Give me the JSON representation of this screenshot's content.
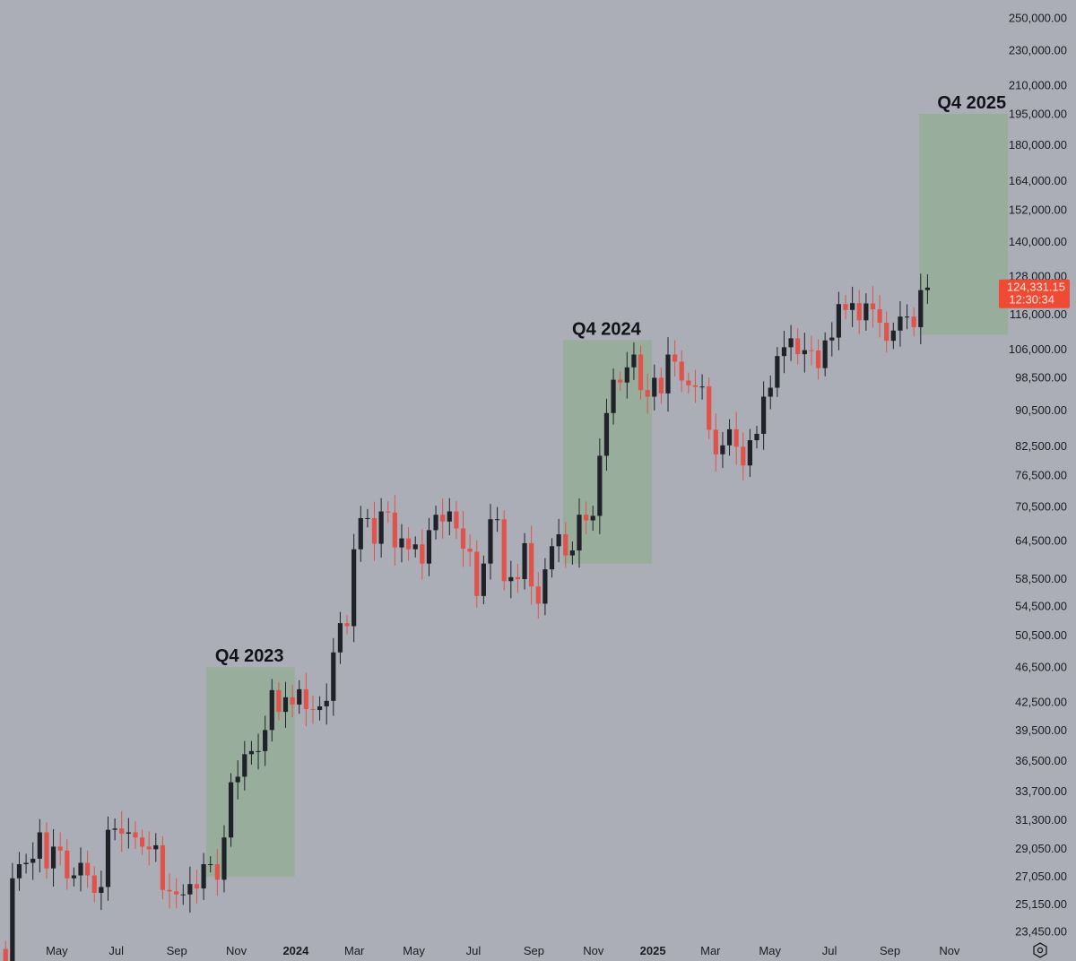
{
  "chart_data": {
    "type": "candlestick",
    "title": "",
    "scale": "log",
    "interval": "weekly",
    "start_week": "2023-03-06",
    "ylim": [
      23450,
      250000
    ],
    "y_ticks": [
      250000,
      230000,
      210000,
      195000,
      180000,
      164000,
      152000,
      140000,
      128000,
      116000,
      106000,
      98500,
      90500,
      82500,
      76500,
      70500,
      64500,
      58500,
      54500,
      50500,
      46500,
      42500,
      39500,
      36500,
      33700,
      31300,
      29050,
      27050,
      25150,
      23450
    ],
    "y_tick_labels": [
      "250,000.00",
      "230,000.00",
      "210,000.00",
      "195,000.00",
      "180,000.00",
      "164,000.00",
      "152,000.00",
      "140,000.00",
      "128,000.00",
      "116,000.00",
      "106,000.00",
      "98,500.00",
      "90,500.00",
      "82,500.00",
      "76,500.00",
      "70,500.00",
      "64,500.00",
      "58,500.00",
      "54,500.00",
      "50,500.00",
      "46,500.00",
      "42,500.00",
      "39,500.00",
      "36,500.00",
      "33,700.00",
      "31,300.00",
      "29,050.00",
      "27,050.00",
      "25,150.00",
      "23,450.00"
    ],
    "x_ticks": [
      {
        "date": "2023-03-01",
        "label": "Mar",
        "bold": false
      },
      {
        "date": "2023-05-01",
        "label": "May",
        "bold": false
      },
      {
        "date": "2023-07-01",
        "label": "Jul",
        "bold": false
      },
      {
        "date": "2023-09-01",
        "label": "Sep",
        "bold": false
      },
      {
        "date": "2023-11-01",
        "label": "Nov",
        "bold": false
      },
      {
        "date": "2024-01-01",
        "label": "2024",
        "bold": true
      },
      {
        "date": "2024-03-01",
        "label": "Mar",
        "bold": false
      },
      {
        "date": "2024-05-01",
        "label": "May",
        "bold": false
      },
      {
        "date": "2024-07-01",
        "label": "Jul",
        "bold": false
      },
      {
        "date": "2024-09-01",
        "label": "Sep",
        "bold": false
      },
      {
        "date": "2024-11-01",
        "label": "Nov",
        "bold": false
      },
      {
        "date": "2025-01-01",
        "label": "2025",
        "bold": true
      },
      {
        "date": "2025-03-01",
        "label": "Mar",
        "bold": false
      },
      {
        "date": "2025-05-01",
        "label": "May",
        "bold": false
      },
      {
        "date": "2025-07-01",
        "label": "Jul",
        "bold": false
      },
      {
        "date": "2025-09-01",
        "label": "Sep",
        "bold": false
      },
      {
        "date": "2025-11-01",
        "label": "Nov",
        "bold": false
      }
    ],
    "first_open": 22400,
    "closes": [
      20600,
      26900,
      27900,
      28000,
      28300,
      30300,
      27600,
      29200,
      28900,
      26900,
      27100,
      28000,
      27100,
      25900,
      26300,
      30500,
      30600,
      30200,
      30300,
      29900,
      29200,
      29000,
      29300,
      26100,
      26000,
      25800,
      25800,
      26500,
      26200,
      27900,
      27900,
      26800,
      29900,
      34500,
      35000,
      37100,
      37400,
      37400,
      39500,
      43800,
      41400,
      43000,
      42200,
      43900,
      41700,
      41600,
      42000,
      42600,
      48300,
      52100,
      51700,
      63100,
      68400,
      68400,
      64000,
      69600,
      69400,
      63400,
      64900,
      63100,
      63900,
      60800,
      66300,
      69000,
      67800,
      69600,
      66600,
      63200,
      62700,
      55900,
      60800,
      68200,
      68200,
      58100,
      58700,
      58400,
      64100,
      57300,
      54800,
      59900,
      63600,
      65600,
      62100,
      62900,
      69000,
      68000,
      68800,
      80400,
      89800,
      97900,
      97200,
      101100,
      104500,
      95300,
      93700,
      98400,
      94500,
      104500,
      102600,
      97700,
      96500,
      96100,
      96200,
      86000,
      80700,
      82600,
      86100,
      82300,
      78400,
      83700,
      85100,
      93700,
      95900,
      104100,
      106500,
      109000,
      104600,
      105700,
      105600,
      100900,
      108400,
      109200,
      119100,
      117300,
      119400,
      114200,
      119300,
      117500,
      113500,
      108300,
      111200,
      115300,
      115300,
      112200,
      123500,
      124300
    ],
    "wick_pct": 0.035,
    "colors": {
      "up": "#1f2229",
      "down": "#e0524a",
      "background": "#abaeb6",
      "box": "#98ad9c",
      "price_tag": "#ef4a33"
    },
    "annotations": [
      {
        "label": "Q4 2023",
        "start": "2023-10-01",
        "end": "2023-12-31",
        "low": 27000,
        "high": 46500,
        "label_pos": "top-left"
      },
      {
        "label": "Q4 2024",
        "start": "2024-10-01",
        "end": "2024-12-31",
        "low": 60800,
        "high": 108500,
        "label_pos": "top-left"
      },
      {
        "label": "Q4 2025",
        "start": "2025-10-01",
        "end": "2025-12-31",
        "low": 110000,
        "high": 195000,
        "label_pos": "top-right"
      }
    ],
    "last_price": 124331.15,
    "last_price_label": "124,331.15",
    "countdown": "12:30:34"
  }
}
